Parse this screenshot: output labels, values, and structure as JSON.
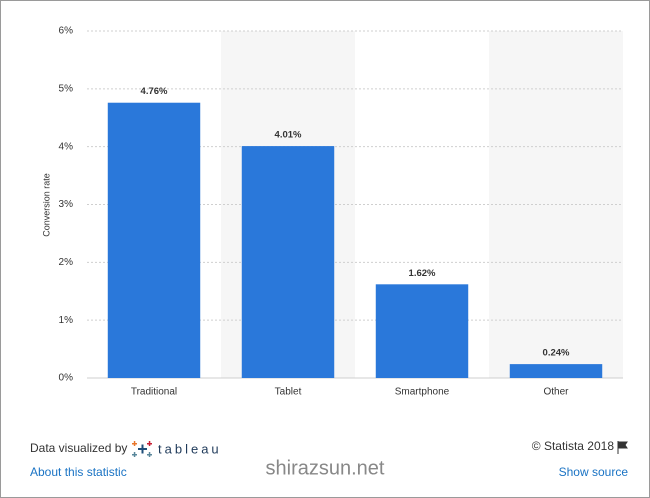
{
  "chart_data": {
    "type": "bar",
    "y_axis_label": "Conversion rate",
    "categories": [
      "Traditional",
      "Tablet",
      "Smartphone",
      "Other"
    ],
    "values": [
      4.76,
      4.01,
      1.62,
      0.24
    ],
    "value_labels": [
      "4.76%",
      "4.01%",
      "1.62%",
      "0.24%"
    ],
    "color": "#2a78da",
    "ylim": [
      0,
      6
    ],
    "yticks": [
      {
        "value": 0,
        "label": "0%"
      },
      {
        "value": 1,
        "label": "1%"
      },
      {
        "value": 2,
        "label": "2%"
      },
      {
        "value": 3,
        "label": "3%"
      },
      {
        "value": 4,
        "label": "4%"
      },
      {
        "value": 5,
        "label": "5%"
      },
      {
        "value": 6,
        "label": "6%"
      }
    ],
    "grid": true
  },
  "footer": {
    "credit": "Data visualized by",
    "logo": "tableau",
    "copyright": "© Statista 2018",
    "about_link": "About this statistic",
    "source_link": "Show source",
    "watermark": "shirazsun.net"
  }
}
